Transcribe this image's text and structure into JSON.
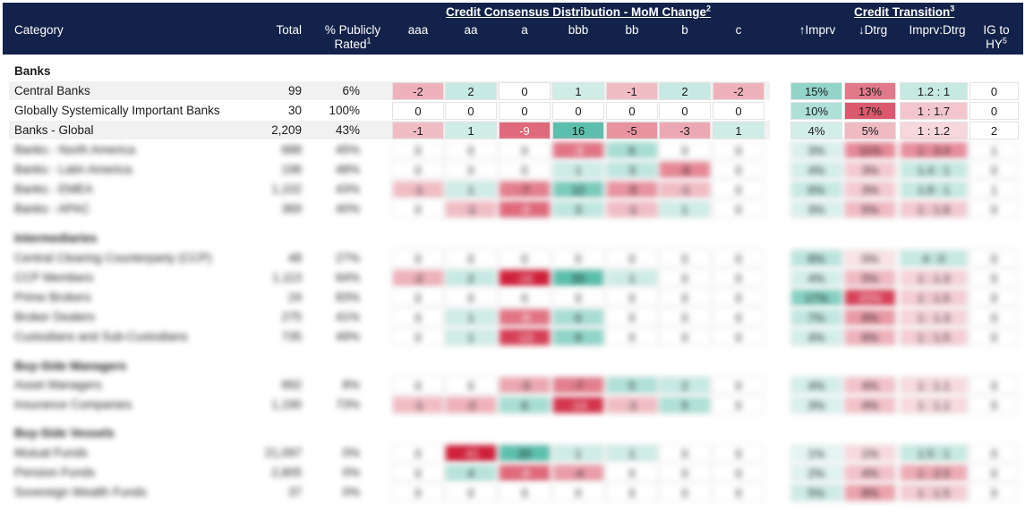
{
  "header": {
    "category": "Category",
    "total": "Total",
    "publicly_rated": "% Publicly",
    "publicly_rated_2": "Rated",
    "publicly_rated_sup": "1",
    "group1": "Credit Consensus Distribution - MoM Change",
    "group1_sup": "2",
    "group2": "Credit Transition",
    "group2_sup": "3",
    "cols": [
      "aaa",
      "aa",
      "a",
      "bbb",
      "bb",
      "b",
      "c"
    ],
    "imprv": "↑Imprv",
    "dtrg": "↓Dtrg",
    "ratio": "Imprv:Dtrg",
    "ig_hy": "IG to",
    "ig_hy_2": "HY",
    "ig_hy_sup": "5"
  },
  "sections": {
    "banks": "Banks",
    "intermediaries": "Intermediaries",
    "buy_side_managers": "Buy-Side Managers",
    "buy_side_vessels": "Buy-Side Vessels"
  },
  "rows": [
    {
      "label": "Central Banks",
      "total": "99",
      "pct": "6%",
      "vals": [
        "-2",
        "2",
        "0",
        "1",
        "-1",
        "2",
        "-2"
      ],
      "imprv": "15%",
      "dtrg": "13%",
      "ratio": "1.2 : 1",
      "ig": "0"
    },
    {
      "label": "Globally Systemically Important Banks",
      "total": "30",
      "pct": "100%",
      "vals": [
        "0",
        "0",
        "0",
        "0",
        "0",
        "0",
        "0"
      ],
      "imprv": "10%",
      "dtrg": "17%",
      "ratio": "1 : 1.7",
      "ig": "0"
    },
    {
      "label": "Banks - Global",
      "total": "2,209",
      "pct": "43%",
      "vals": [
        "-1",
        "1",
        "-9",
        "16",
        "-5",
        "-3",
        "1"
      ],
      "imprv": "4%",
      "dtrg": "5%",
      "ratio": "1 : 1.2",
      "ig": "2"
    },
    {
      "label": "Banks - North America",
      "total": "688",
      "pct": "45%",
      "vals": [
        "0",
        "0",
        "0",
        "-8",
        "6",
        "0",
        "0"
      ],
      "imprv": "3%",
      "dtrg": "11%",
      "ratio": "1 : 3.4",
      "ig": "1"
    },
    {
      "label": "Banks - Latin America",
      "total": "196",
      "pct": "48%",
      "vals": [
        "0",
        "0",
        "0",
        "1",
        "3",
        "-6",
        "0"
      ],
      "imprv": "4%",
      "dtrg": "3%",
      "ratio": "1.4 : 1",
      "ig": "0"
    },
    {
      "label": "Banks - EMEA",
      "total": "1,102",
      "pct": "43%",
      "vals": [
        "-1",
        "1",
        "-7",
        "12",
        "-5",
        "-1",
        "0"
      ],
      "imprv": "6%",
      "dtrg": "3%",
      "ratio": "1.8 : 1",
      "ig": "1"
    },
    {
      "label": "Banks - APAC",
      "total": "369",
      "pct": "40%",
      "vals": [
        "0",
        "-1",
        "-9",
        "3",
        "-1",
        "1",
        "0"
      ],
      "imprv": "3%",
      "dtrg": "5%",
      "ratio": "1 : 1.6",
      "ig": "0"
    },
    {
      "label": "Central Clearing Counterparty (CCP)",
      "total": "48",
      "pct": "27%",
      "vals": [
        "0",
        "0",
        "0",
        "0",
        "0",
        "0",
        "0"
      ],
      "imprv": "8%",
      "dtrg": "0%",
      "ratio": "4 : 0",
      "ig": "0"
    },
    {
      "label": "CCP Members",
      "total": "1,113",
      "pct": "64%",
      "vals": [
        "-2",
        "2",
        "-16",
        "20",
        "1",
        "0",
        "0"
      ],
      "imprv": "4%",
      "dtrg": "5%",
      "ratio": "1 : 1.3",
      "ig": "0"
    },
    {
      "label": "Prime Brokers",
      "total": "24",
      "pct": "83%",
      "vals": [
        "0",
        "0",
        "0",
        "0",
        "0",
        "0",
        "0"
      ],
      "imprv": "17%",
      "dtrg": "25%",
      "ratio": "1 : 1.5",
      "ig": "0"
    },
    {
      "label": "Broker Dealers",
      "total": "275",
      "pct": "41%",
      "vals": [
        "0",
        "1",
        "-8",
        "6",
        "0",
        "0",
        "0"
      ],
      "imprv": "7%",
      "dtrg": "9%",
      "ratio": "1 : 1.3",
      "ig": "0"
    },
    {
      "label": "Custodians and Sub-Custodians",
      "total": "735",
      "pct": "49%",
      "vals": [
        "0",
        "1",
        "-13",
        "9",
        "0",
        "0",
        "0"
      ],
      "imprv": "4%",
      "dtrg": "6%",
      "ratio": "1 : 1.5",
      "ig": "0"
    },
    {
      "label": "Asset Managers",
      "total": "892",
      "pct": "8%",
      "vals": [
        "0",
        "0",
        "-3",
        "-7",
        "5",
        "2",
        "0"
      ],
      "imprv": "4%",
      "dtrg": "4%",
      "ratio": "1 : 1.1",
      "ig": "0"
    },
    {
      "label": "Insurance Companies",
      "total": "1,190",
      "pct": "73%",
      "vals": [
        "-1",
        "-2",
        "6",
        "-14",
        "-1",
        "5",
        "0"
      ],
      "imprv": "3%",
      "dtrg": "4%",
      "ratio": "1 : 1.1",
      "ig": "0"
    },
    {
      "label": "Mutual Funds",
      "total": "21,097",
      "pct": "0%",
      "vals": [
        "0",
        "-41",
        "20",
        "1",
        "1",
        "0",
        "0"
      ],
      "imprv": "1%",
      "dtrg": "1%",
      "ratio": "1.5 : 1",
      "ig": "0"
    },
    {
      "label": "Pension Funds",
      "total": "2,805",
      "pct": "0%",
      "vals": [
        "0",
        "4",
        "-9",
        "-4",
        "0",
        "0",
        "0"
      ],
      "imprv": "2%",
      "dtrg": "4%",
      "ratio": "1 : 2.5",
      "ig": "0"
    },
    {
      "label": "Sovereign Wealth Funds",
      "total": "37",
      "pct": "0%",
      "vals": [
        "0",
        "0",
        "0",
        "0",
        "0",
        "0",
        "0"
      ],
      "imprv": "5%",
      "dtrg": "8%",
      "ratio": "1 : 1.5",
      "ig": "0"
    }
  ],
  "colors": {
    "header": "#13224a",
    "positive": "#5cbfad",
    "negative": "#cf1f3a"
  }
}
